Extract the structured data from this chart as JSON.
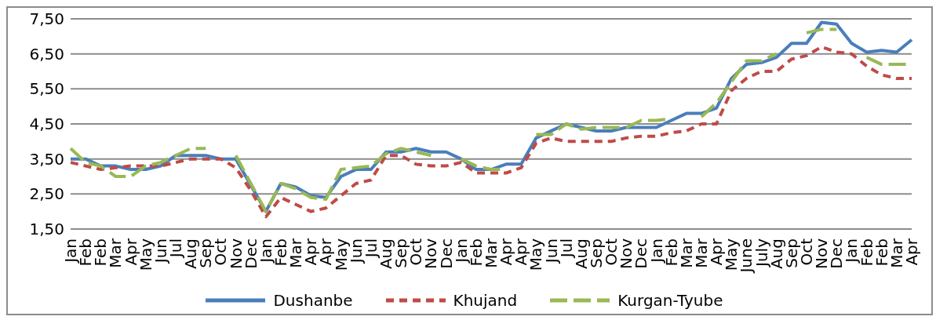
{
  "chart_data": {
    "type": "line",
    "categories": [
      "Jan",
      "Feb",
      "Feb",
      "Mar",
      "Apr",
      "May",
      "Jun",
      "Jul",
      "Aug",
      "Sep",
      "Oct",
      "Nov",
      "Dec",
      "Jan",
      "Feb",
      "Mar",
      "Apr",
      "Apr",
      "May",
      "Jun",
      "Jul",
      "Aug",
      "Sep",
      "Oct",
      "Nov",
      "Dec",
      "Jan",
      "Feb",
      "Mar",
      "Apr",
      "Apr",
      "May",
      "Jun",
      "Jul",
      "Aug",
      "Sep",
      "Oct",
      "Nov",
      "Dec",
      "Jan",
      "Feb",
      "Mar",
      "Mar",
      "Apr",
      "May",
      "June",
      "July",
      "Aug",
      "Sep",
      "Oct",
      "Nov",
      "Dec",
      "Jan",
      "Feb",
      "Feb",
      "Mar",
      "Apr"
    ],
    "series": [
      {
        "name": "Dushanbe",
        "color": "#4a7ebb",
        "line_style": "solid",
        "values": [
          3.5,
          3.5,
          3.3,
          3.3,
          3.2,
          3.2,
          3.3,
          3.6,
          3.6,
          3.6,
          3.5,
          3.5,
          2.75,
          2.0,
          2.8,
          2.7,
          2.45,
          2.4,
          3.0,
          3.2,
          3.2,
          3.7,
          3.7,
          3.8,
          3.7,
          3.7,
          3.5,
          3.2,
          3.2,
          3.35,
          3.35,
          4.1,
          4.3,
          4.5,
          4.4,
          4.3,
          4.3,
          4.4,
          4.4,
          4.4,
          4.6,
          4.8,
          4.8,
          4.95,
          5.8,
          6.2,
          6.25,
          6.4,
          6.8,
          6.8,
          7.4,
          7.35,
          6.8,
          6.55,
          6.6,
          6.55,
          6.9
        ]
      },
      {
        "name": "Khujand",
        "color": "#be4b48",
        "line_style": "dashed",
        "values": [
          3.4,
          3.3,
          3.2,
          3.25,
          3.3,
          3.3,
          3.3,
          3.4,
          3.5,
          3.5,
          3.5,
          3.25,
          2.6,
          1.85,
          2.4,
          2.2,
          2.0,
          2.1,
          2.45,
          2.8,
          2.9,
          3.6,
          3.6,
          3.35,
          3.3,
          3.3,
          3.4,
          3.1,
          3.1,
          3.1,
          3.25,
          3.95,
          4.1,
          4.0,
          4.0,
          4.0,
          4.0,
          4.1,
          4.15,
          4.15,
          4.25,
          4.3,
          4.5,
          4.5,
          5.45,
          5.8,
          6.0,
          6.0,
          6.35,
          6.45,
          6.7,
          6.55,
          6.5,
          6.15,
          5.9,
          5.8,
          5.8
        ]
      },
      {
        "name": "Kurgan-Tyube",
        "color": "#98b954",
        "line_style": "longdash",
        "values": [
          3.8,
          3.4,
          3.3,
          3.0,
          3.0,
          3.3,
          3.4,
          3.6,
          3.8,
          3.8,
          null,
          3.6,
          2.8,
          2.0,
          2.8,
          2.65,
          2.4,
          2.35,
          3.2,
          3.25,
          3.3,
          3.65,
          3.8,
          3.7,
          3.6,
          null,
          3.5,
          3.3,
          3.2,
          3.2,
          null,
          4.2,
          4.2,
          4.5,
          4.35,
          4.4,
          4.4,
          4.4,
          4.6,
          4.6,
          4.65,
          null,
          4.7,
          5.1,
          5.7,
          6.3,
          6.3,
          6.5,
          null,
          7.1,
          7.2,
          7.2,
          null,
          6.4,
          6.2,
          6.2,
          6.2
        ]
      }
    ],
    "ylim": [
      1.5,
      7.5
    ],
    "yticks": [
      {
        "value": 1.5,
        "label": "1,50"
      },
      {
        "value": 2.5,
        "label": "2,50"
      },
      {
        "value": 3.5,
        "label": "3,50"
      },
      {
        "value": 4.5,
        "label": "4,50"
      },
      {
        "value": 5.5,
        "label": "5,50"
      },
      {
        "value": 6.5,
        "label": "6,50"
      },
      {
        "value": 7.5,
        "label": "7,50"
      }
    ],
    "grid": "y",
    "legend": "bottom"
  }
}
